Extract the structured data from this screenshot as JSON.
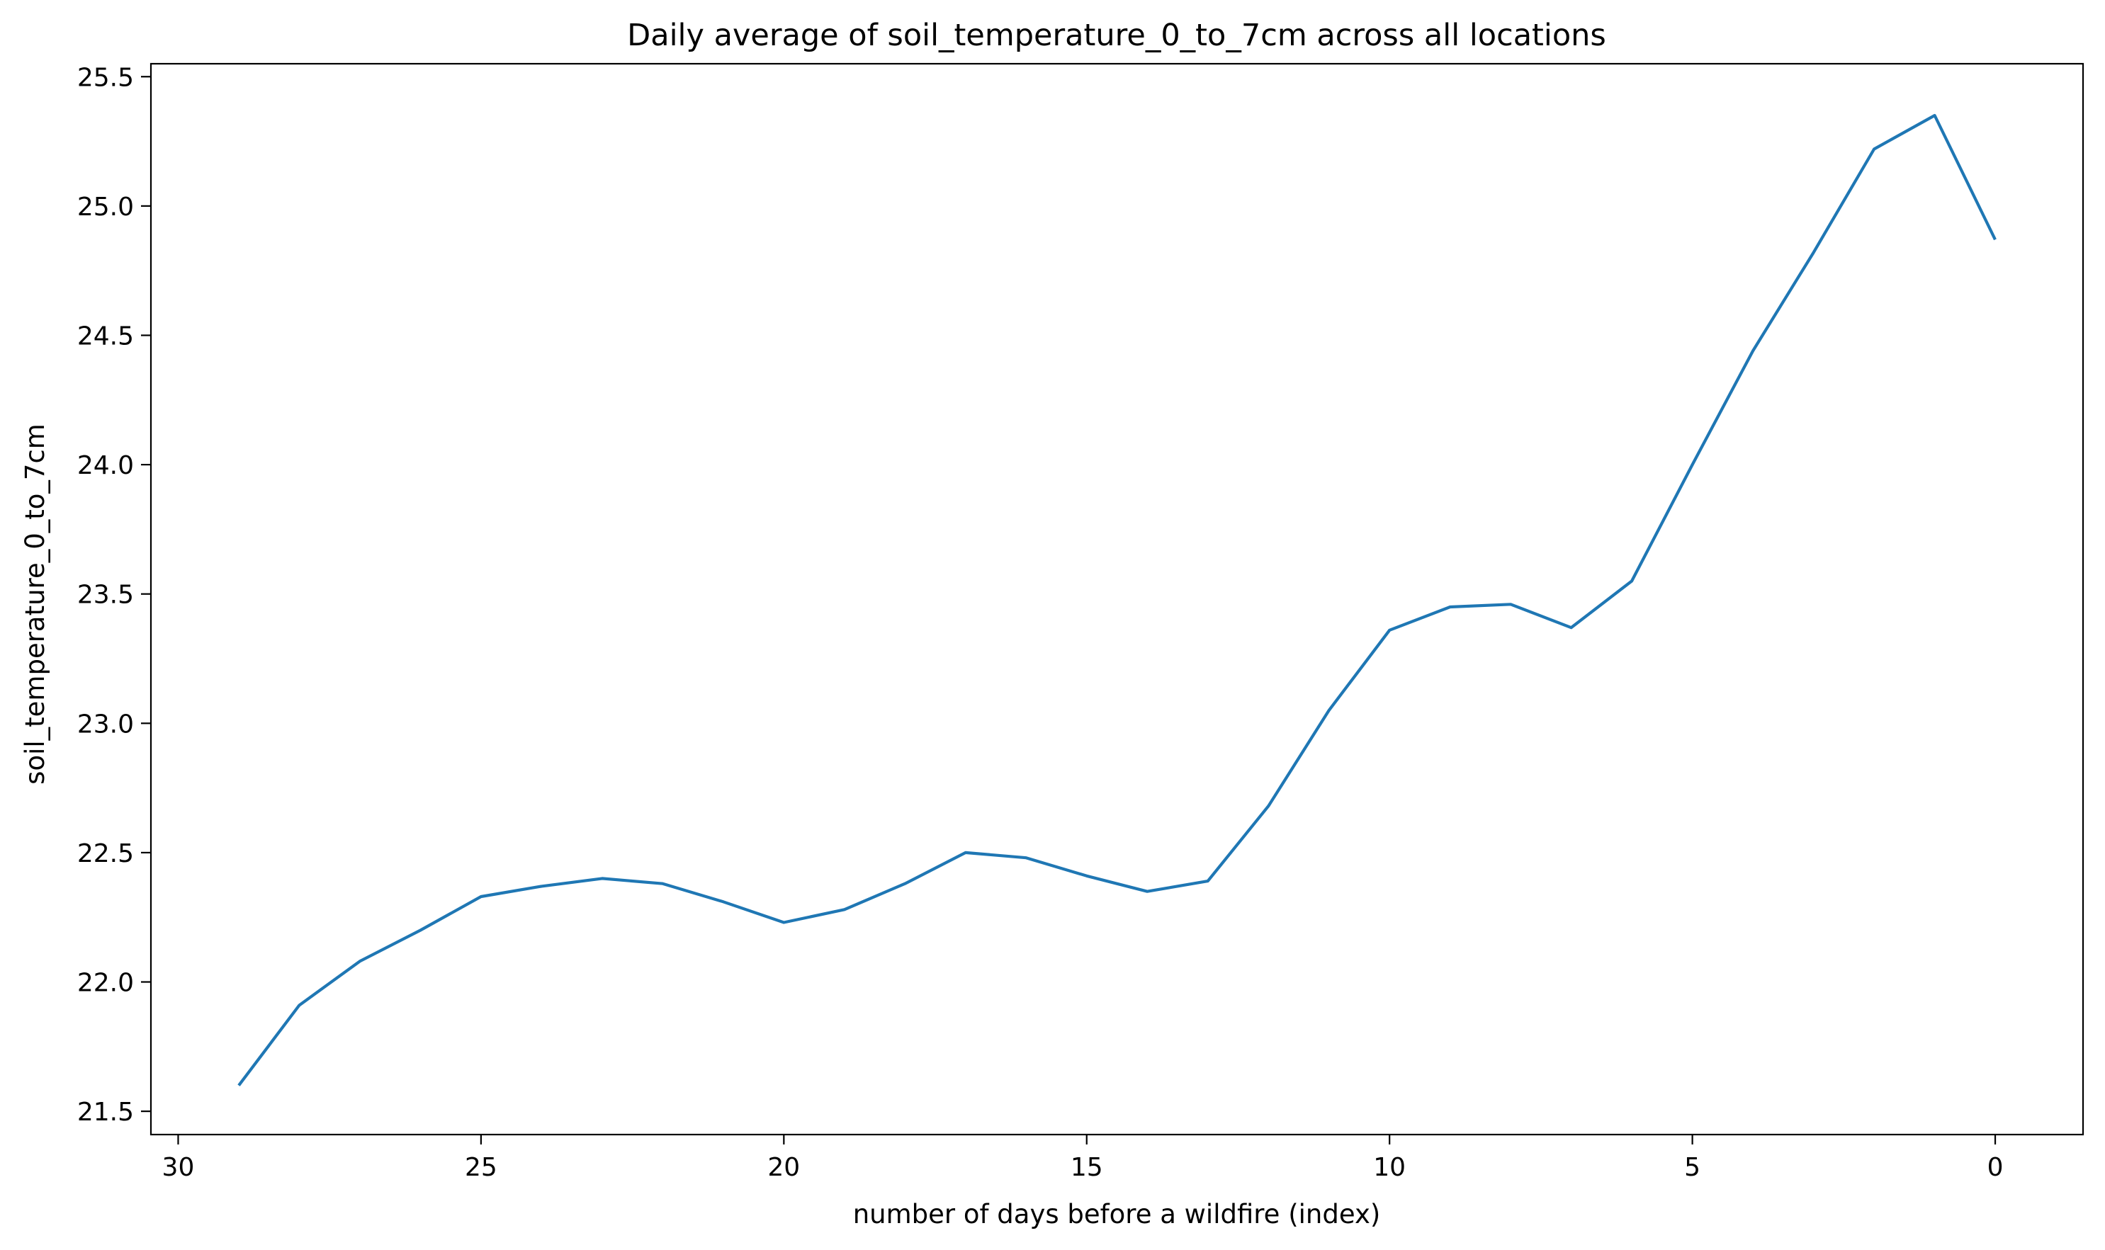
{
  "chart_data": {
    "type": "line",
    "title": "Daily average of soil_temperature_0_to_7cm across all locations",
    "xlabel": "number of days before a wildfire (index)",
    "ylabel": "soil_temperature_0_to_7cm",
    "x_inverted": true,
    "xlim": [
      30.45,
      -1.45
    ],
    "ylim": [
      21.41,
      25.55
    ],
    "grid": false,
    "x_ticks": [
      30,
      25,
      20,
      15,
      10,
      5,
      0
    ],
    "x_tick_labels": [
      "30",
      "25",
      "20",
      "15",
      "10",
      "5",
      "0"
    ],
    "y_ticks": [
      21.5,
      22.0,
      22.5,
      23.0,
      23.5,
      24.0,
      24.5,
      25.0,
      25.5
    ],
    "y_tick_labels": [
      "21.5",
      "22.0",
      "22.5",
      "23.0",
      "23.5",
      "24.0",
      "24.5",
      "25.0",
      "25.5"
    ],
    "series": [
      {
        "color": "#1f77b4",
        "x": [
          29,
          28,
          27,
          26,
          25,
          24,
          23,
          22,
          21,
          20,
          19,
          18,
          17,
          16,
          15,
          14,
          13,
          12,
          11,
          10,
          9,
          8,
          7,
          6,
          5,
          4,
          3,
          2,
          1,
          0
        ],
        "values": [
          21.6,
          21.91,
          22.08,
          22.2,
          22.33,
          22.37,
          22.4,
          22.38,
          22.31,
          22.23,
          22.28,
          22.38,
          22.5,
          22.48,
          22.41,
          22.35,
          22.39,
          22.68,
          23.05,
          23.36,
          23.45,
          23.46,
          23.37,
          23.55,
          24.0,
          24.44,
          24.82,
          25.22,
          25.35,
          24.87
        ]
      }
    ]
  }
}
